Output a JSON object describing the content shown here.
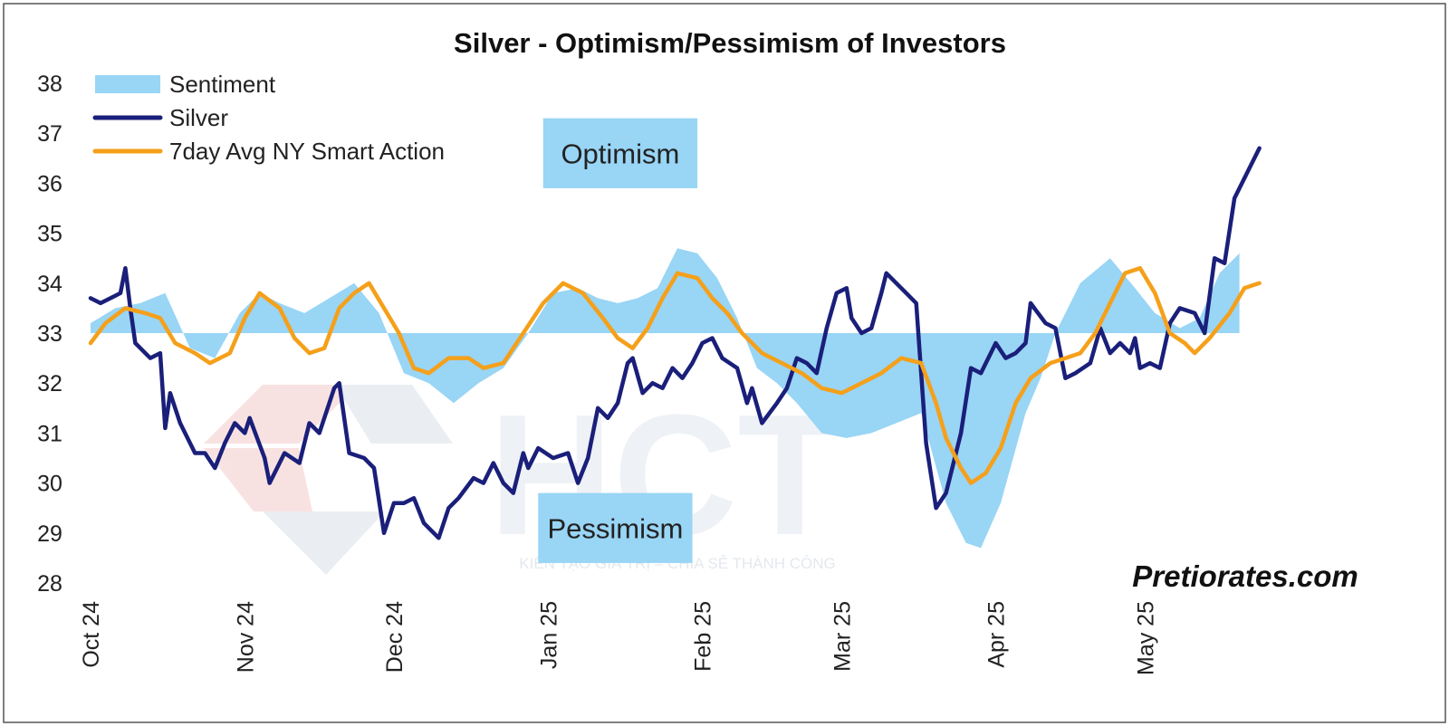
{
  "chart_data": {
    "type": "line",
    "title": "Silver - Optimism/Pessimism of Investors",
    "xlabel": "",
    "ylabel": "",
    "ylim": [
      28,
      38
    ],
    "yticks": [
      28,
      29,
      30,
      31,
      32,
      33,
      34,
      35,
      36,
      37,
      38
    ],
    "xlim": [
      "2024-10-01",
      "2025-06-06"
    ],
    "xticks": [
      {
        "label": "Oct 24",
        "date": "2024-10-01"
      },
      {
        "label": "Nov 24",
        "date": "2024-11-01"
      },
      {
        "label": "Dec 24",
        "date": "2024-12-01"
      },
      {
        "label": "Jan 25",
        "date": "2025-01-01"
      },
      {
        "label": "Feb 25",
        "date": "2025-02-01"
      },
      {
        "label": "Mar 25",
        "date": "2025-03-01"
      },
      {
        "label": "Apr 25",
        "date": "2025-04-01"
      },
      {
        "label": "May 25",
        "date": "2025-05-01"
      }
    ],
    "grid": false,
    "legend_position": "top-left",
    "baseline": 33,
    "series": [
      {
        "name": "Sentiment",
        "kind": "area",
        "color": "#99d5f5",
        "points": [
          [
            "2024-10-01",
            33.2
          ],
          [
            "2024-10-06",
            33.5
          ],
          [
            "2024-10-11",
            33.6
          ],
          [
            "2024-10-16",
            33.8
          ],
          [
            "2024-10-21",
            32.7
          ],
          [
            "2024-10-26",
            32.5
          ],
          [
            "2024-10-31",
            33.4
          ],
          [
            "2024-11-04",
            33.8
          ],
          [
            "2024-11-08",
            33.6
          ],
          [
            "2024-11-13",
            33.4
          ],
          [
            "2024-11-18",
            33.7
          ],
          [
            "2024-11-23",
            34.0
          ],
          [
            "2024-11-28",
            33.4
          ],
          [
            "2024-12-03",
            32.2
          ],
          [
            "2024-12-08",
            32.0
          ],
          [
            "2024-12-13",
            31.6
          ],
          [
            "2024-12-18",
            32.0
          ],
          [
            "2024-12-23",
            32.3
          ],
          [
            "2024-12-28",
            33.0
          ],
          [
            "2025-01-02",
            33.8
          ],
          [
            "2025-01-07",
            33.9
          ],
          [
            "2025-01-11",
            33.7
          ],
          [
            "2025-01-15",
            33.6
          ],
          [
            "2025-01-19",
            33.7
          ],
          [
            "2025-01-23",
            33.9
          ],
          [
            "2025-01-27",
            34.7
          ],
          [
            "2025-01-31",
            34.6
          ],
          [
            "2025-02-04",
            34.1
          ],
          [
            "2025-02-08",
            33.3
          ],
          [
            "2025-02-12",
            32.3
          ],
          [
            "2025-02-16",
            32.0
          ],
          [
            "2025-02-20",
            31.6
          ],
          [
            "2025-02-25",
            31.0
          ],
          [
            "2025-03-02",
            30.9
          ],
          [
            "2025-03-07",
            31.0
          ],
          [
            "2025-03-12",
            31.2
          ],
          [
            "2025-03-17",
            31.4
          ],
          [
            "2025-03-22",
            29.6
          ],
          [
            "2025-03-26",
            28.8
          ],
          [
            "2025-03-29",
            28.7
          ],
          [
            "2025-04-02",
            29.6
          ],
          [
            "2025-04-07",
            31.4
          ],
          [
            "2025-04-10",
            32.1
          ],
          [
            "2025-04-13",
            33.0
          ],
          [
            "2025-04-18",
            34.0
          ],
          [
            "2025-04-24",
            34.5
          ],
          [
            "2025-04-29",
            33.9
          ],
          [
            "2025-05-03",
            33.4
          ],
          [
            "2025-05-08",
            33.1
          ],
          [
            "2025-05-12",
            33.3
          ],
          [
            "2025-05-16",
            34.2
          ],
          [
            "2025-05-20",
            34.6
          ]
        ]
      },
      {
        "name": "Silver",
        "kind": "line",
        "color": "#1a1f7a",
        "points": [
          [
            "2024-10-01",
            33.7
          ],
          [
            "2024-10-03",
            33.6
          ],
          [
            "2024-10-05",
            33.7
          ],
          [
            "2024-10-07",
            33.8
          ],
          [
            "2024-10-08",
            34.3
          ],
          [
            "2024-10-09",
            33.5
          ],
          [
            "2024-10-10",
            32.8
          ],
          [
            "2024-10-13",
            32.5
          ],
          [
            "2024-10-15",
            32.6
          ],
          [
            "2024-10-16",
            31.1
          ],
          [
            "2024-10-17",
            31.8
          ],
          [
            "2024-10-19",
            31.2
          ],
          [
            "2024-10-22",
            30.6
          ],
          [
            "2024-10-24",
            30.6
          ],
          [
            "2024-10-26",
            30.3
          ],
          [
            "2024-10-28",
            30.8
          ],
          [
            "2024-10-30",
            31.2
          ],
          [
            "2024-11-01",
            31.0
          ],
          [
            "2024-11-02",
            31.3
          ],
          [
            "2024-11-05",
            30.5
          ],
          [
            "2024-11-06",
            30.0
          ],
          [
            "2024-11-09",
            30.6
          ],
          [
            "2024-11-12",
            30.4
          ],
          [
            "2024-11-14",
            31.2
          ],
          [
            "2024-11-16",
            31.0
          ],
          [
            "2024-11-19",
            31.9
          ],
          [
            "2024-11-20",
            32.0
          ],
          [
            "2024-11-22",
            30.6
          ],
          [
            "2024-11-25",
            30.5
          ],
          [
            "2024-11-27",
            30.3
          ],
          [
            "2024-11-29",
            29.0
          ],
          [
            "2024-12-01",
            29.6
          ],
          [
            "2024-12-03",
            29.6
          ],
          [
            "2024-12-05",
            29.7
          ],
          [
            "2024-12-07",
            29.2
          ],
          [
            "2024-12-10",
            28.9
          ],
          [
            "2024-12-12",
            29.5
          ],
          [
            "2024-12-14",
            29.7
          ],
          [
            "2024-12-17",
            30.1
          ],
          [
            "2024-12-19",
            30.0
          ],
          [
            "2024-12-21",
            30.4
          ],
          [
            "2024-12-23",
            30.0
          ],
          [
            "2024-12-25",
            29.8
          ],
          [
            "2024-12-27",
            30.6
          ],
          [
            "2024-12-28",
            30.3
          ],
          [
            "2024-12-30",
            30.7
          ],
          [
            "2025-01-02",
            30.5
          ],
          [
            "2025-01-05",
            30.6
          ],
          [
            "2025-01-07",
            30.0
          ],
          [
            "2025-01-09",
            30.5
          ],
          [
            "2025-01-11",
            31.5
          ],
          [
            "2025-01-13",
            31.3
          ],
          [
            "2025-01-15",
            31.6
          ],
          [
            "2025-01-17",
            32.4
          ],
          [
            "2025-01-18",
            32.5
          ],
          [
            "2025-01-20",
            31.8
          ],
          [
            "2025-01-22",
            32.0
          ],
          [
            "2025-01-24",
            31.9
          ],
          [
            "2025-01-26",
            32.3
          ],
          [
            "2025-01-28",
            32.1
          ],
          [
            "2025-01-30",
            32.4
          ],
          [
            "2025-02-01",
            32.8
          ],
          [
            "2025-02-03",
            32.9
          ],
          [
            "2025-02-05",
            32.5
          ],
          [
            "2025-02-08",
            32.3
          ],
          [
            "2025-02-10",
            31.6
          ],
          [
            "2025-02-11",
            31.9
          ],
          [
            "2025-02-13",
            31.2
          ],
          [
            "2025-02-16",
            31.6
          ],
          [
            "2025-02-18",
            31.9
          ],
          [
            "2025-02-20",
            32.5
          ],
          [
            "2025-02-22",
            32.4
          ],
          [
            "2025-02-24",
            32.2
          ],
          [
            "2025-02-26",
            33.1
          ],
          [
            "2025-02-28",
            33.8
          ],
          [
            "2025-03-02",
            33.9
          ],
          [
            "2025-03-03",
            33.3
          ],
          [
            "2025-03-05",
            33.0
          ],
          [
            "2025-03-07",
            33.1
          ],
          [
            "2025-03-09",
            33.8
          ],
          [
            "2025-03-10",
            34.2
          ],
          [
            "2025-03-12",
            34.0
          ],
          [
            "2025-03-14",
            33.8
          ],
          [
            "2025-03-16",
            33.6
          ],
          [
            "2025-03-18",
            30.8
          ],
          [
            "2025-03-20",
            29.5
          ],
          [
            "2025-03-22",
            29.8
          ],
          [
            "2025-03-25",
            31.0
          ],
          [
            "2025-03-27",
            32.3
          ],
          [
            "2025-03-29",
            32.2
          ],
          [
            "2025-04-01",
            32.8
          ],
          [
            "2025-04-03",
            32.5
          ],
          [
            "2025-04-05",
            32.6
          ],
          [
            "2025-04-07",
            32.8
          ],
          [
            "2025-04-08",
            33.6
          ],
          [
            "2025-04-11",
            33.2
          ],
          [
            "2025-04-13",
            33.1
          ],
          [
            "2025-04-15",
            32.1
          ],
          [
            "2025-04-17",
            32.2
          ],
          [
            "2025-04-20",
            32.4
          ],
          [
            "2025-04-22",
            33.1
          ],
          [
            "2025-04-24",
            32.6
          ],
          [
            "2025-04-26",
            32.8
          ],
          [
            "2025-04-28",
            32.6
          ],
          [
            "2025-04-29",
            32.9
          ],
          [
            "2025-04-30",
            32.3
          ],
          [
            "2025-05-02",
            32.4
          ],
          [
            "2025-05-04",
            32.3
          ],
          [
            "2025-05-06",
            33.2
          ],
          [
            "2025-05-08",
            33.5
          ],
          [
            "2025-05-11",
            33.4
          ],
          [
            "2025-05-13",
            33.0
          ],
          [
            "2025-05-15",
            34.5
          ],
          [
            "2025-05-17",
            34.4
          ],
          [
            "2025-05-19",
            35.7
          ],
          [
            "2025-05-21",
            36.1
          ],
          [
            "2025-05-24",
            36.7
          ]
        ]
      },
      {
        "name": "7day Avg NY Smart Action",
        "kind": "line",
        "color": "#f5a01a",
        "points": [
          [
            "2024-10-01",
            32.8
          ],
          [
            "2024-10-04",
            33.2
          ],
          [
            "2024-10-08",
            33.5
          ],
          [
            "2024-10-12",
            33.4
          ],
          [
            "2024-10-15",
            33.3
          ],
          [
            "2024-10-18",
            32.8
          ],
          [
            "2024-10-22",
            32.6
          ],
          [
            "2024-10-25",
            32.4
          ],
          [
            "2024-10-29",
            32.6
          ],
          [
            "2024-11-01",
            33.3
          ],
          [
            "2024-11-04",
            33.8
          ],
          [
            "2024-11-08",
            33.5
          ],
          [
            "2024-11-11",
            32.9
          ],
          [
            "2024-11-14",
            32.6
          ],
          [
            "2024-11-17",
            32.7
          ],
          [
            "2024-11-20",
            33.5
          ],
          [
            "2024-11-23",
            33.8
          ],
          [
            "2024-11-26",
            34.0
          ],
          [
            "2024-11-29",
            33.5
          ],
          [
            "2024-12-02",
            33.0
          ],
          [
            "2024-12-05",
            32.3
          ],
          [
            "2024-12-08",
            32.2
          ],
          [
            "2024-12-12",
            32.5
          ],
          [
            "2024-12-16",
            32.5
          ],
          [
            "2024-12-19",
            32.3
          ],
          [
            "2024-12-23",
            32.4
          ],
          [
            "2024-12-27",
            33.0
          ],
          [
            "2024-12-31",
            33.6
          ],
          [
            "2025-01-04",
            34.0
          ],
          [
            "2025-01-08",
            33.8
          ],
          [
            "2025-01-12",
            33.3
          ],
          [
            "2025-01-15",
            32.9
          ],
          [
            "2025-01-18",
            32.7
          ],
          [
            "2025-01-21",
            33.1
          ],
          [
            "2025-01-24",
            33.7
          ],
          [
            "2025-01-27",
            34.2
          ],
          [
            "2025-01-31",
            34.1
          ],
          [
            "2025-02-03",
            33.7
          ],
          [
            "2025-02-06",
            33.4
          ],
          [
            "2025-02-09",
            33.0
          ],
          [
            "2025-02-13",
            32.6
          ],
          [
            "2025-02-17",
            32.4
          ],
          [
            "2025-02-21",
            32.2
          ],
          [
            "2025-02-25",
            31.9
          ],
          [
            "2025-03-01",
            31.8
          ],
          [
            "2025-03-05",
            32.0
          ],
          [
            "2025-03-09",
            32.2
          ],
          [
            "2025-03-13",
            32.5
          ],
          [
            "2025-03-17",
            32.4
          ],
          [
            "2025-03-20",
            31.6
          ],
          [
            "2025-03-22",
            30.9
          ],
          [
            "2025-03-25",
            30.3
          ],
          [
            "2025-03-27",
            30.0
          ],
          [
            "2025-03-30",
            30.2
          ],
          [
            "2025-04-02",
            30.7
          ],
          [
            "2025-04-05",
            31.6
          ],
          [
            "2025-04-08",
            32.1
          ],
          [
            "2025-04-12",
            32.4
          ],
          [
            "2025-04-15",
            32.5
          ],
          [
            "2025-04-18",
            32.6
          ],
          [
            "2025-04-21",
            33.0
          ],
          [
            "2025-04-24",
            33.6
          ],
          [
            "2025-04-27",
            34.2
          ],
          [
            "2025-04-30",
            34.3
          ],
          [
            "2025-05-03",
            33.8
          ],
          [
            "2025-05-06",
            33.0
          ],
          [
            "2025-05-09",
            32.8
          ],
          [
            "2025-05-11",
            32.6
          ],
          [
            "2025-05-14",
            32.9
          ],
          [
            "2025-05-18",
            33.4
          ],
          [
            "2025-05-21",
            33.9
          ],
          [
            "2025-05-24",
            34.0
          ]
        ]
      }
    ],
    "annotations": [
      {
        "text": "Optimism",
        "y_range": [
          35.9,
          37.3
        ],
        "x_range": [
          "2024-12-31",
          "2025-01-31"
        ]
      },
      {
        "text": "Pessimism",
        "y_range": [
          28.4,
          29.8
        ],
        "x_range": [
          "2024-12-30",
          "2025-01-30"
        ]
      }
    ],
    "credit": "Pretiorates.com",
    "watermark": {
      "logo": "HCT",
      "tagline": "KIẾN TẠO GIÁ TRỊ – CHIA SẺ THÀNH CÔNG"
    }
  }
}
